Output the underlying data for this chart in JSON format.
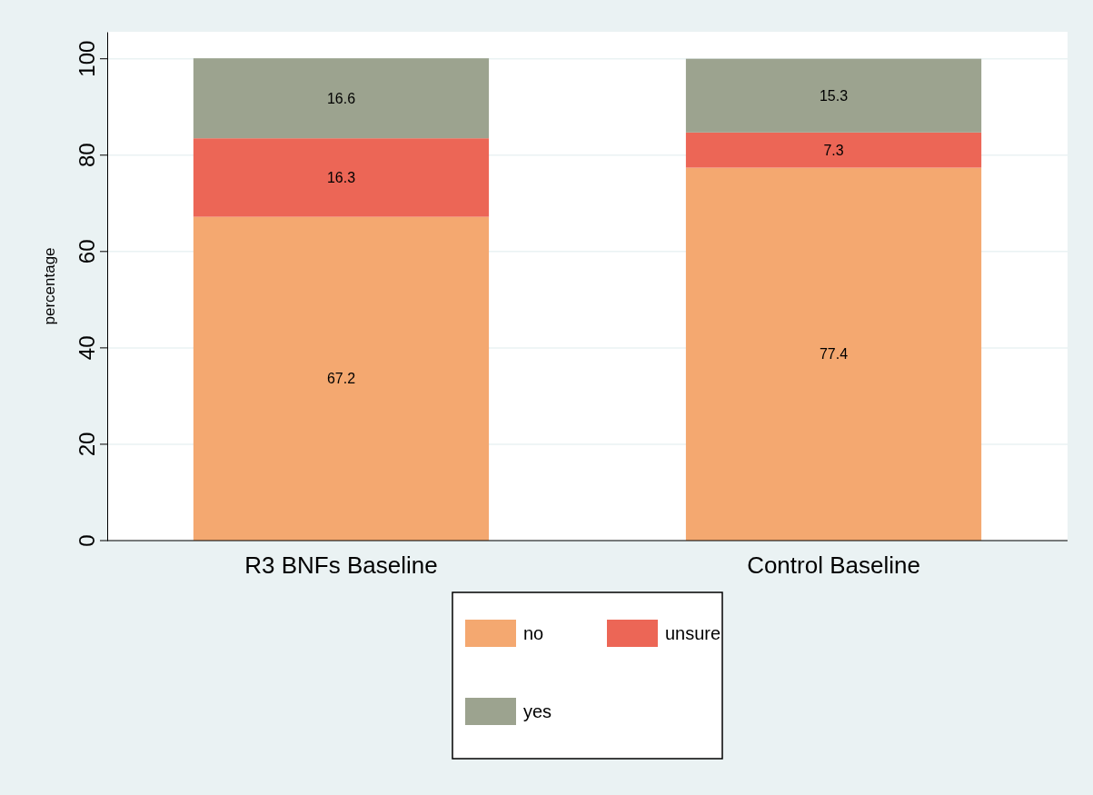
{
  "chart_data": {
    "type": "bar",
    "stacked": true,
    "ylabel": "percentage",
    "categories": [
      "R3 BNFs Baseline",
      "Control Baseline"
    ],
    "series": [
      {
        "name": "no",
        "color": "#f4a870",
        "values": [
          67.2,
          77.4
        ]
      },
      {
        "name": "unsure",
        "color": "#ec6656",
        "values": [
          16.3,
          7.3
        ]
      },
      {
        "name": "yes",
        "color": "#9ca38f",
        "values": [
          16.6,
          15.3
        ]
      }
    ],
    "ylim": [
      0,
      105.6
    ],
    "yticks": [
      0,
      20,
      40,
      60,
      80,
      100
    ],
    "grid": "y",
    "legend": "bottom",
    "data_labels": true
  }
}
